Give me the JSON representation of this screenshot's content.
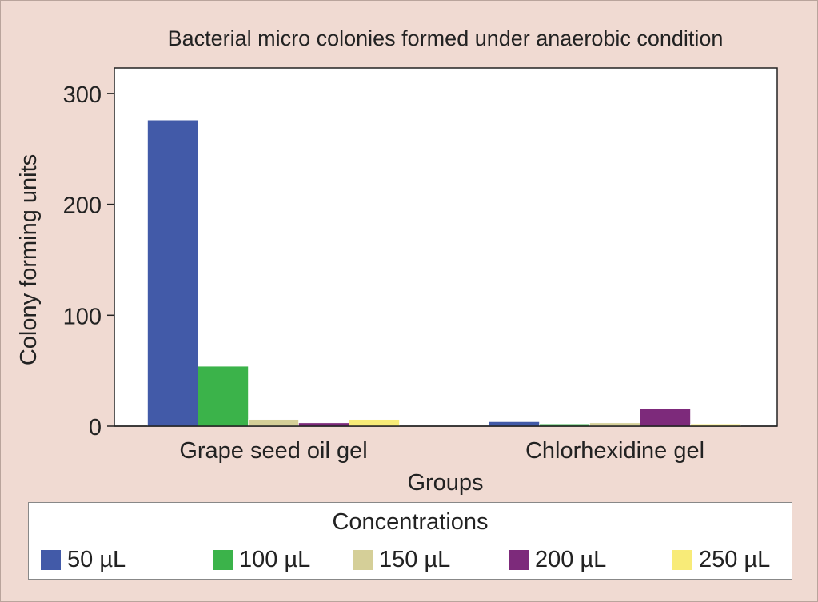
{
  "chart_data": {
    "type": "bar",
    "title": "Bacterial micro colonies formed under anaerobic condition",
    "xlabel": "Groups",
    "ylabel": "Colony forming units",
    "ylim": [
      0,
      323
    ],
    "yticks": [
      0,
      100,
      200,
      300
    ],
    "ytick_labels": [
      "0",
      "100",
      "200",
      "300"
    ],
    "categories": [
      "Grape seed oil gel",
      "Chlorhexidine gel"
    ],
    "legend_title": "Concentrations",
    "legend_position": "bottom",
    "grid": false,
    "series": [
      {
        "name": "50 µL",
        "color": "#425aa8",
        "values": [
          276,
          4
        ]
      },
      {
        "name": "100 µL",
        "color": "#3bb34a",
        "values": [
          54,
          2
        ]
      },
      {
        "name": "150 µL",
        "color": "#d5cf98",
        "values": [
          6,
          3
        ]
      },
      {
        "name": "200 µL",
        "color": "#7d2a7b",
        "values": [
          3,
          16
        ]
      },
      {
        "name": "250 µL",
        "color": "#f8eb78",
        "values": [
          6,
          2
        ]
      }
    ]
  }
}
